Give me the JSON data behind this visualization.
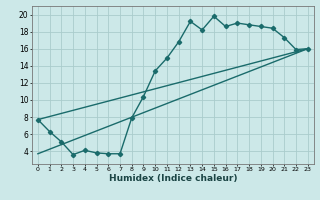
{
  "xlabel": "Humidex (Indice chaleur)",
  "ylabel": "",
  "bg_color": "#cce8e8",
  "grid_color": "#aacccc",
  "line_color": "#1a6b6b",
  "xlim": [
    -0.5,
    23.5
  ],
  "ylim": [
    2.5,
    21.0
  ],
  "yticks": [
    4,
    6,
    8,
    10,
    12,
    14,
    16,
    18,
    20
  ],
  "xticks": [
    0,
    1,
    2,
    3,
    4,
    5,
    6,
    7,
    8,
    9,
    10,
    11,
    12,
    13,
    14,
    15,
    16,
    17,
    18,
    19,
    20,
    21,
    22,
    23
  ],
  "series1_x": [
    0,
    1,
    2,
    3,
    4,
    5,
    6,
    7,
    8,
    9,
    10,
    11,
    12,
    13,
    14,
    15,
    16,
    17,
    18,
    19,
    20,
    21,
    22,
    23
  ],
  "series1_y": [
    7.7,
    6.3,
    5.1,
    3.6,
    4.1,
    3.8,
    3.7,
    3.7,
    7.9,
    10.4,
    13.4,
    14.9,
    16.8,
    19.2,
    18.2,
    19.8,
    18.6,
    19.0,
    18.8,
    18.6,
    18.4,
    17.3,
    15.9,
    16.0
  ],
  "series2_x": [
    0,
    23
  ],
  "series2_y": [
    7.7,
    16.0
  ],
  "series3_x": [
    0,
    23
  ],
  "series3_y": [
    3.7,
    16.0
  ]
}
